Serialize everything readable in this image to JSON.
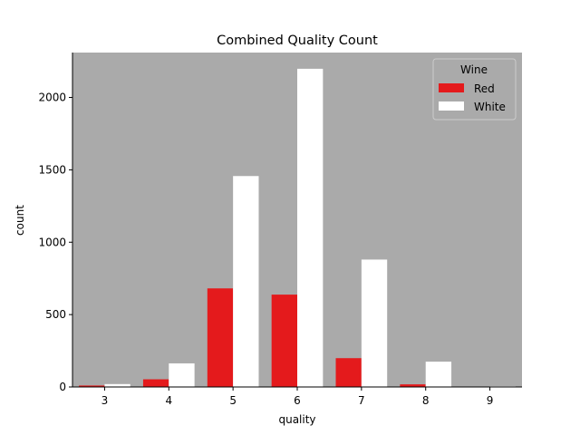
{
  "chart_data": {
    "type": "bar",
    "title": "Combined Quality Count",
    "xlabel": "quality",
    "ylabel": "count",
    "categories": [
      "3",
      "4",
      "5",
      "6",
      "7",
      "8",
      "9"
    ],
    "ylim": [
      0,
      2310
    ],
    "yticks": [
      0,
      500,
      1000,
      1500,
      2000
    ],
    "grid": false,
    "background_color": "#aaaaaa",
    "legend": {
      "title": "Wine",
      "placement": "top-right"
    },
    "series": [
      {
        "name": "Red",
        "color": "#e41a1c",
        "values": [
          10,
          53,
          681,
          638,
          199,
          18,
          0
        ]
      },
      {
        "name": "White",
        "color": "#ffffff",
        "values": [
          20,
          163,
          1457,
          2198,
          880,
          175,
          5
        ]
      }
    ]
  }
}
